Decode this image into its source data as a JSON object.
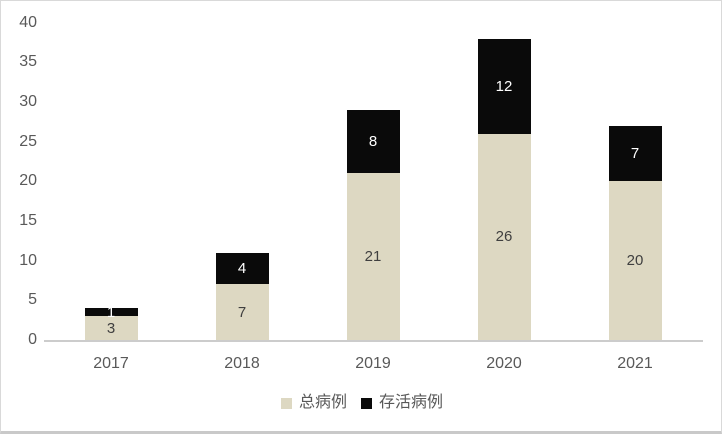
{
  "chart_data": {
    "type": "bar",
    "stacked": true,
    "title": "",
    "categories": [
      "2017",
      "2018",
      "2019",
      "2020",
      "2021"
    ],
    "series": [
      {
        "name": "总病例",
        "values": [
          3,
          7,
          21,
          26,
          20
        ],
        "color": "#ddd8c2",
        "label_color": "#3f3f3f"
      },
      {
        "name": "存活病例",
        "values": [
          1,
          4,
          8,
          12,
          7
        ],
        "color": "#0a0a0a",
        "label_color": "#ffffff"
      }
    ],
    "stack_totals": [
      4,
      11,
      29,
      38,
      27
    ],
    "xlabel": "",
    "ylabel": "",
    "ylim": [
      0,
      40
    ],
    "yticks": [
      0,
      5,
      10,
      15,
      20,
      25,
      30,
      35,
      40
    ],
    "grid": false,
    "data_labels": true,
    "legend_position": "bottom"
  },
  "style": {
    "tick_label_color": "#595959",
    "axis_line_color": "#cccccc",
    "frame_border_color": "#d9d9d9",
    "background_color": "#ffffff"
  }
}
